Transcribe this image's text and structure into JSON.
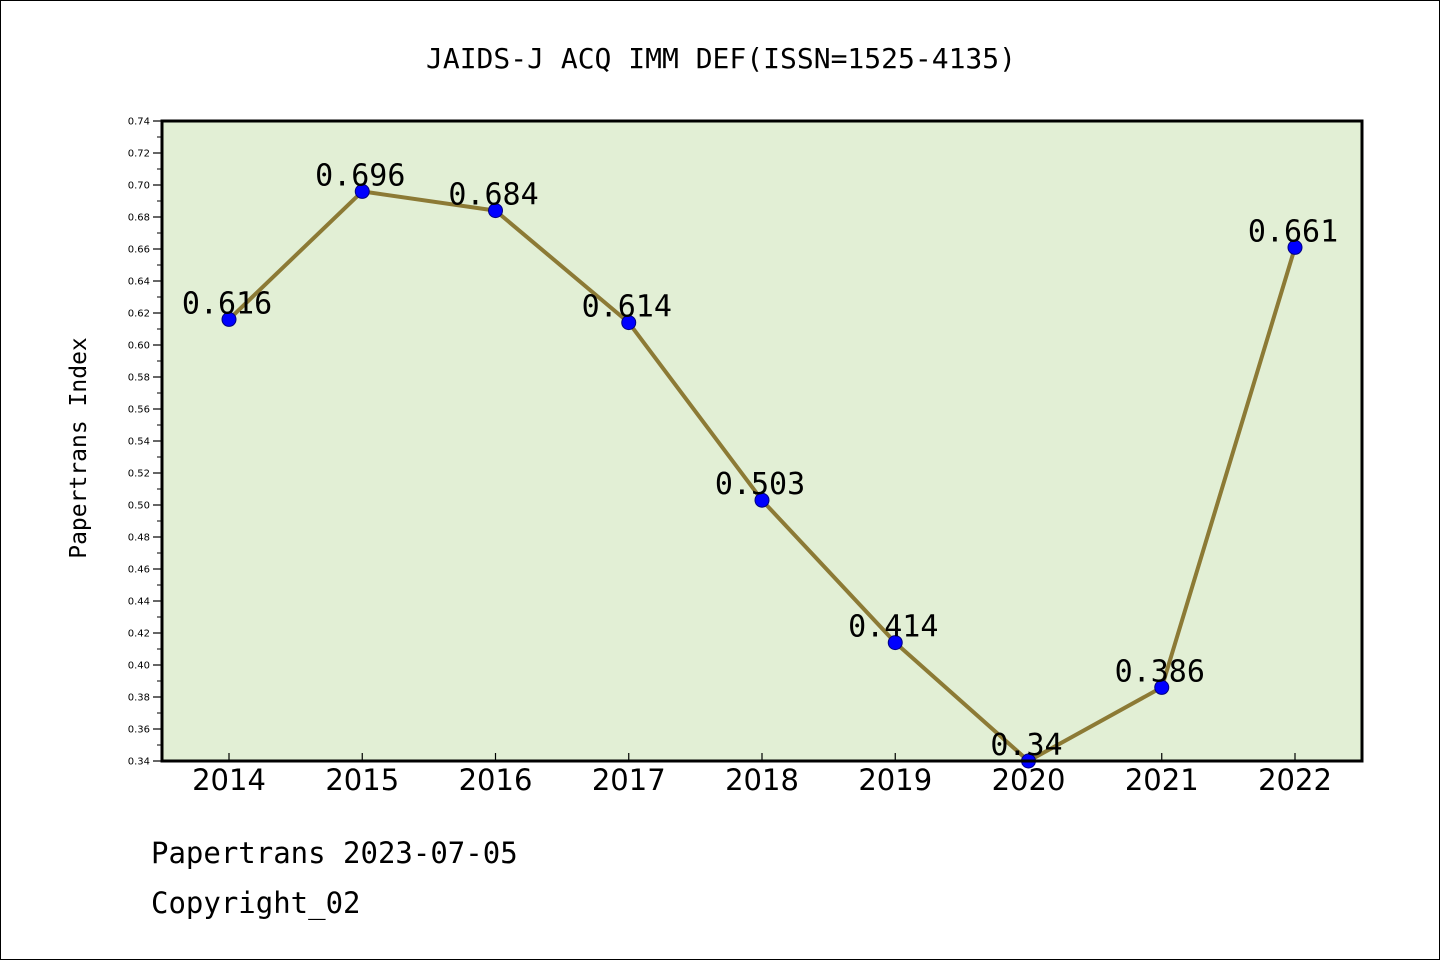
{
  "chart_data": {
    "type": "line",
    "title": "JAIDS-J ACQ IMM DEF(ISSN=1525-4135)",
    "ylabel": "Papertrans Index",
    "xlabel": "",
    "categories": [
      "2014",
      "2015",
      "2016",
      "2017",
      "2018",
      "2019",
      "2020",
      "2021",
      "2022"
    ],
    "series": [
      {
        "values": [
          0.616,
          0.696,
          0.684,
          0.614,
          0.503,
          0.414,
          0.34,
          0.386,
          0.661
        ],
        "data_labels": [
          "0.616",
          "0.696",
          "0.684",
          "0.614",
          "0.503",
          "0.414",
          "0.34",
          "0.386",
          "0.661"
        ]
      }
    ],
    "ylim": [
      0.34,
      0.74
    ],
    "ytick_step": 0.02,
    "grid": false,
    "legend": "none",
    "colors": {
      "plot_background": "#e2efd5",
      "line": "#8c7a35",
      "marker_fill": "#0000ff",
      "marker_stroke": "#000080"
    }
  },
  "footer": {
    "source": "Papertrans 2023-07-05",
    "copyright": "Copyright_02"
  }
}
